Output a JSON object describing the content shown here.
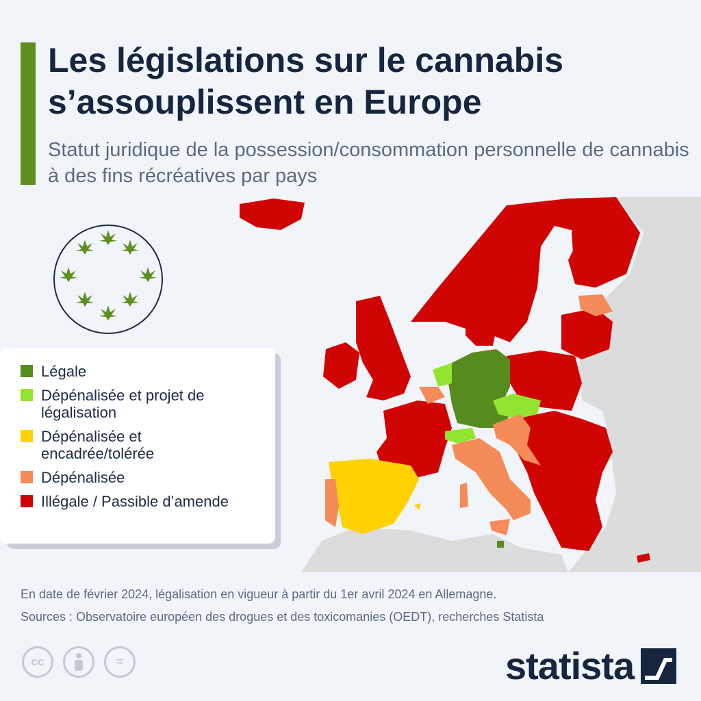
{
  "title": "Les législations sur le cannabis s’assouplissent en Europe",
  "subtitle": "Statut juridique de la possession/consommation personnelle de cannabis à des fins récréatives par pays",
  "colors": {
    "accent": "#5e8f1e",
    "legal": "#568b1d",
    "decriminalized_legalization": "#93e430",
    "decriminalized_tolerated": "#ffd200",
    "decriminalized": "#f58b58",
    "illegal": "#d10404",
    "other_land": "#dcdcdc",
    "sea": "#f1f4f8",
    "brand": "#16263f"
  },
  "icons": {
    "logo": "cannabis-leaf-ring-icon",
    "license": [
      "cc-icon",
      "attribution-icon",
      "no-derivatives-icon"
    ],
    "brand": "statista-logo-icon"
  },
  "legend": {
    "items": [
      {
        "label": "Légale",
        "color": "#568b1d"
      },
      {
        "label": "Dépénalisée et projet de légalisation",
        "color": "#93e430"
      },
      {
        "label": "Dépénalisée et encadrée/tolérée",
        "color": "#ffd200"
      },
      {
        "label": "Dépénalisée",
        "color": "#f58b58"
      },
      {
        "label": "Illégale / Passible d’amende",
        "color": "#d10404"
      }
    ]
  },
  "footer": {
    "note": "En date de février 2024, légalisation en vigueur à partir du 1er avril 2024 en Allemagne.",
    "sources": "Sources : Observatoire européen des drogues et des toxicomanies (OEDT), recherches Statista"
  },
  "license": {
    "cc": "cc",
    "equals": "="
  },
  "brand": {
    "name": "statista"
  }
}
